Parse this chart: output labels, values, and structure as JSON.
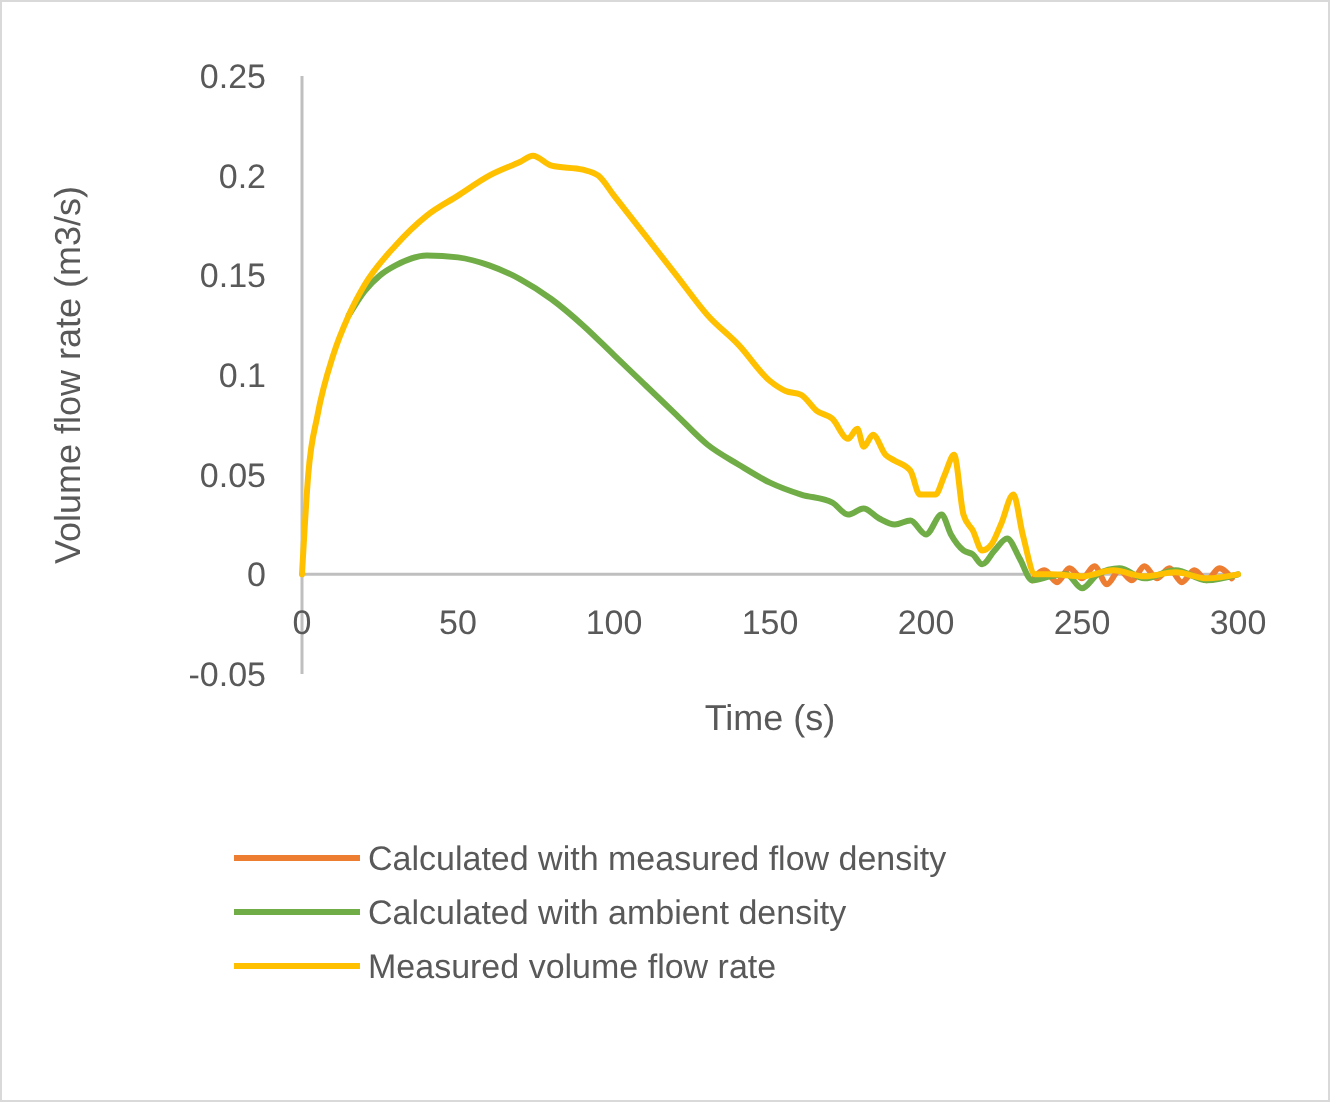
{
  "chart_data": {
    "type": "line",
    "xlabel": "Time (s)",
    "ylabel": "Volume flow rate (m3/s)",
    "xlim": [
      0,
      300
    ],
    "xticks": [
      0,
      50,
      100,
      150,
      200,
      250,
      300
    ],
    "ylim": [
      -0.05,
      0.25
    ],
    "yticks": [
      -0.05,
      0,
      0.05,
      0.1,
      0.15,
      0.2,
      0.25
    ],
    "grid": false,
    "legend": "bottom",
    "marker": "none",
    "line_style": "solid",
    "series": [
      {
        "name": "Calculated with measured flow density",
        "color": "#ed7d31",
        "x": [
          234,
          238,
          242,
          246,
          250,
          254,
          258,
          262,
          266,
          270,
          274,
          278,
          282,
          286,
          290,
          294,
          298
        ],
        "values": [
          -0.003,
          0.002,
          -0.004,
          0.003,
          -0.002,
          0.004,
          -0.005,
          0.002,
          -0.003,
          0.004,
          -0.002,
          0.003,
          -0.004,
          0.002,
          -0.003,
          0.003,
          -0.002
        ]
      },
      {
        "name": "Calculated with ambient density",
        "color": "#70ad47",
        "x": [
          15,
          20,
          25,
          30,
          40,
          50,
          60,
          70,
          80,
          90,
          100,
          110,
          120,
          130,
          140,
          150,
          160,
          170,
          175,
          180,
          185,
          190,
          195,
          200,
          205,
          208,
          212,
          215,
          218,
          222,
          226,
          230,
          234,
          240,
          245,
          250,
          255,
          262,
          270,
          280,
          290,
          300
        ],
        "values": [
          0.13,
          0.142,
          0.15,
          0.155,
          0.16,
          0.159,
          0.155,
          0.148,
          0.138,
          0.125,
          0.11,
          0.095,
          0.08,
          0.065,
          0.055,
          0.046,
          0.04,
          0.036,
          0.03,
          0.033,
          0.028,
          0.025,
          0.027,
          0.02,
          0.03,
          0.02,
          0.012,
          0.01,
          0.005,
          0.012,
          0.018,
          0.008,
          -0.003,
          -0.001,
          0,
          -0.007,
          0,
          0.003,
          -0.002,
          0.002,
          -0.003,
          0
        ]
      },
      {
        "name": "Measured volume flow rate",
        "color": "#ffc000",
        "x": [
          0,
          2,
          5,
          10,
          15,
          20,
          30,
          40,
          50,
          60,
          70,
          74,
          80,
          90,
          95,
          100,
          110,
          120,
          130,
          140,
          150,
          155,
          160,
          165,
          170,
          175,
          178,
          180,
          183,
          187,
          190,
          195,
          198,
          203,
          206,
          209,
          212,
          215,
          218,
          221,
          224,
          228,
          231,
          235,
          240,
          250,
          260,
          270,
          280,
          290,
          300
        ],
        "values": [
          0,
          0.05,
          0.08,
          0.11,
          0.13,
          0.145,
          0.165,
          0.18,
          0.19,
          0.2,
          0.207,
          0.21,
          0.205,
          0.203,
          0.2,
          0.19,
          0.17,
          0.15,
          0.13,
          0.115,
          0.097,
          0.092,
          0.09,
          0.082,
          0.078,
          0.068,
          0.073,
          0.064,
          0.07,
          0.06,
          0.057,
          0.052,
          0.04,
          0.04,
          0.05,
          0.06,
          0.03,
          0.022,
          0.012,
          0.015,
          0.025,
          0.04,
          0.02,
          0,
          0,
          -0.001,
          0.002,
          -0.001,
          0.001,
          -0.002,
          0
        ]
      }
    ]
  }
}
